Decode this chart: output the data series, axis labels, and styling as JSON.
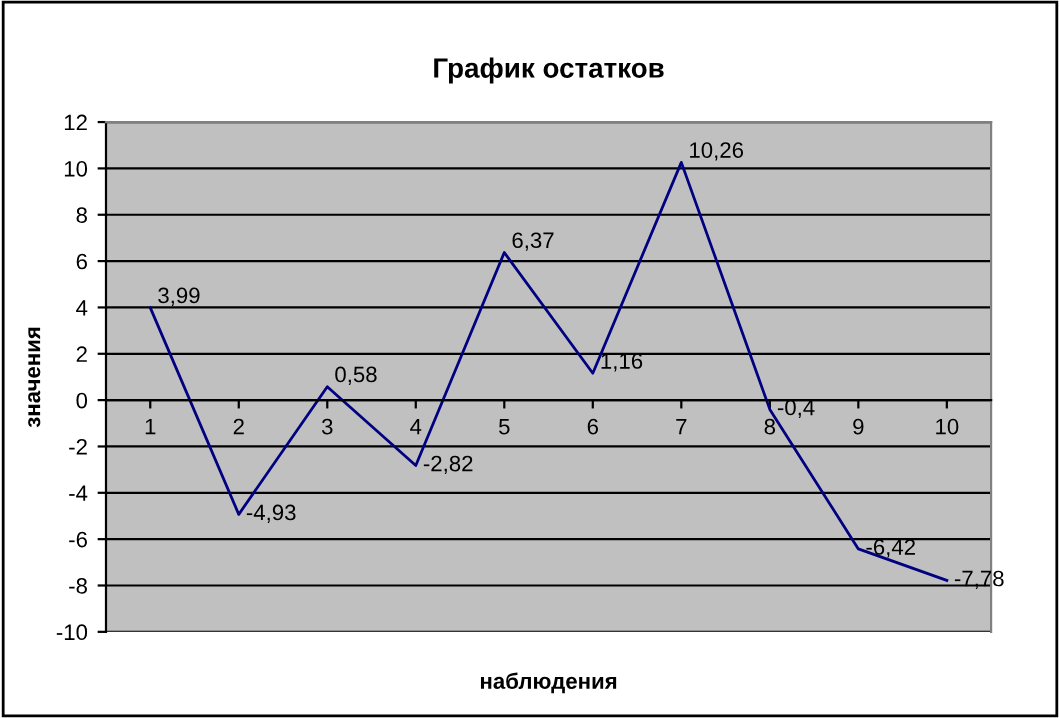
{
  "chart_data": {
    "type": "line",
    "title": "График остатков",
    "xlabel": "наблюдения",
    "ylabel": "значения",
    "categories": [
      "1",
      "2",
      "3",
      "4",
      "5",
      "6",
      "7",
      "8",
      "9",
      "10"
    ],
    "series": [
      {
        "color": "#000080",
        "values": [
          3.99,
          -4.93,
          0.58,
          -2.82,
          6.37,
          1.16,
          10.26,
          -0.4,
          -6.42,
          -7.78
        ],
        "value_labels": [
          "3,99",
          "-4,93",
          "0,58",
          "-2,82",
          "6,37",
          "1,16",
          "10,26",
          "-0,4",
          "-6,42",
          "-7,78"
        ]
      }
    ],
    "ylim": [
      -10,
      12
    ],
    "yticks": [
      -10,
      -8,
      -6,
      -4,
      -2,
      0,
      2,
      4,
      6,
      8,
      10,
      12
    ],
    "grid": "y",
    "marker": "none",
    "line_style": "solid",
    "legend": false
  }
}
